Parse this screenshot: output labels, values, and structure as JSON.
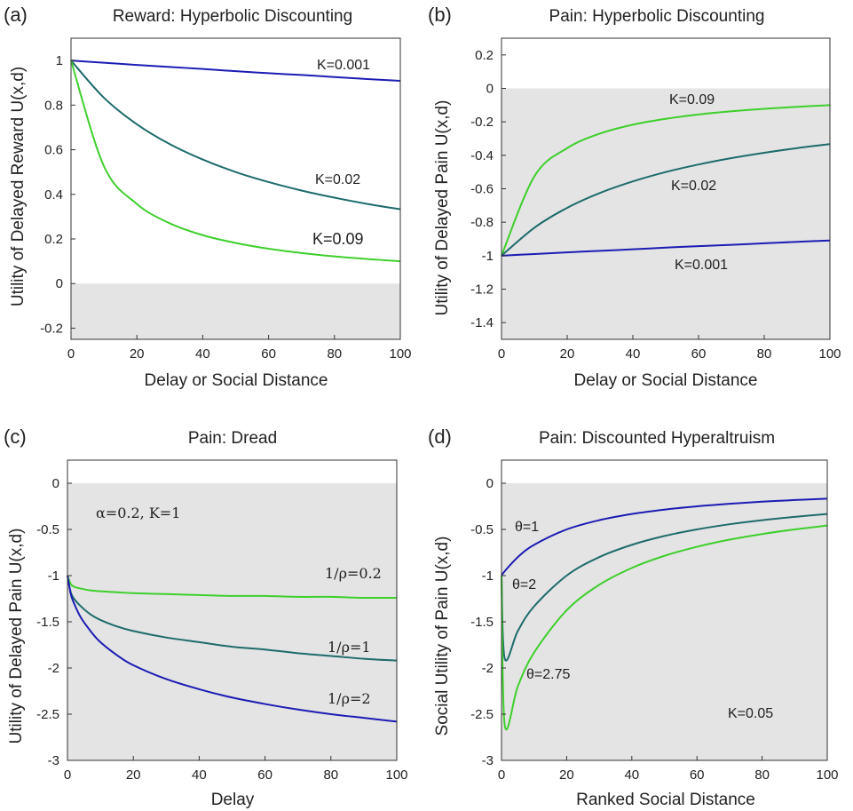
{
  "chart_data": [
    {
      "type": "line",
      "panel": "(a)",
      "title": "Reward: Hyperbolic Discounting",
      "xlabel": "Delay or Social Distance",
      "ylabel": "Utility of Delayed Reward U(x,d)",
      "xlim": [
        0,
        100
      ],
      "ylim": [
        -0.25,
        1.1
      ],
      "xticks": [
        "0",
        "20",
        "40",
        "60",
        "80",
        "100"
      ],
      "yticks": [
        "-0.2",
        "0",
        "0.2",
        "0.4",
        "0.6",
        "0.8",
        "1"
      ],
      "shaded_region": [
        -0.25,
        0
      ],
      "x": [
        0,
        10,
        20,
        30,
        40,
        50,
        60,
        70,
        80,
        90,
        100
      ],
      "series": [
        {
          "name": "K=0.001",
          "color": "#1c1cb4",
          "values": [
            1.0,
            0.99,
            0.98,
            0.971,
            0.962,
            0.952,
            0.943,
            0.935,
            0.926,
            0.917,
            0.909
          ]
        },
        {
          "name": "K=0.02",
          "color": "#1e6b6b",
          "values": [
            1.0,
            0.833,
            0.714,
            0.625,
            0.556,
            0.5,
            0.455,
            0.417,
            0.385,
            0.357,
            0.333
          ]
        },
        {
          "name": "K=0.09",
          "color": "#3ecf2c",
          "values": [
            1.0,
            0.526,
            0.357,
            0.27,
            0.217,
            0.182,
            0.156,
            0.137,
            0.122,
            0.11,
            0.1
          ]
        }
      ],
      "annotations": [
        "K=0.001",
        "K=0.02",
        "K=0.09"
      ]
    },
    {
      "type": "line",
      "panel": "(b)",
      "title": "Pain: Hyperbolic Discounting",
      "xlabel": "Delay or Social Distance",
      "ylabel": "Utility of Delayed Pain U(x,d)",
      "xlim": [
        0,
        100
      ],
      "ylim": [
        -1.5,
        0.3
      ],
      "xticks": [
        "0",
        "20",
        "40",
        "60",
        "80",
        "100"
      ],
      "yticks": [
        "-1.4",
        "-1.2",
        "-1",
        "-0.8",
        "-0.6",
        "-0.4",
        "-0.2",
        "0",
        "0.2"
      ],
      "shaded_region": [
        -1.5,
        0
      ],
      "x": [
        0,
        10,
        20,
        30,
        40,
        50,
        60,
        70,
        80,
        90,
        100
      ],
      "series": [
        {
          "name": "K=0.09",
          "color": "#3ecf2c",
          "values": [
            -1.0,
            -0.526,
            -0.357,
            -0.27,
            -0.217,
            -0.182,
            -0.156,
            -0.137,
            -0.122,
            -0.11,
            -0.1
          ]
        },
        {
          "name": "K=0.02",
          "color": "#1e6b6b",
          "values": [
            -1.0,
            -0.833,
            -0.714,
            -0.625,
            -0.556,
            -0.5,
            -0.455,
            -0.417,
            -0.385,
            -0.357,
            -0.333
          ]
        },
        {
          "name": "K=0.001",
          "color": "#1c1cb4",
          "values": [
            -1.0,
            -0.99,
            -0.98,
            -0.971,
            -0.962,
            -0.952,
            -0.943,
            -0.935,
            -0.926,
            -0.917,
            -0.909
          ]
        }
      ],
      "annotations": [
        "K=0.09",
        "K=0.02",
        "K=0.001"
      ]
    },
    {
      "type": "line",
      "panel": "(c)",
      "title": "Pain: Dread",
      "xlabel": "Delay",
      "ylabel": "Utility of Delayed Pain U(x,d)",
      "xlim": [
        0,
        100
      ],
      "ylim": [
        -3,
        0.25
      ],
      "xticks": [
        "0",
        "20",
        "40",
        "60",
        "80",
        "100"
      ],
      "yticks": [
        "-3",
        "-2.5",
        "-2",
        "-1.5",
        "-1",
        "-0.5",
        "0"
      ],
      "shaded_region": [
        -3,
        0
      ],
      "x": [
        0,
        1,
        2,
        4,
        7,
        10,
        15,
        20,
        30,
        40,
        50,
        60,
        70,
        80,
        90,
        100
      ],
      "series": [
        {
          "name": "1/ρ=0.2",
          "color": "#3ecf2c",
          "values": [
            -1.0,
            -1.09,
            -1.12,
            -1.14,
            -1.16,
            -1.17,
            -1.18,
            -1.19,
            -1.2,
            -1.21,
            -1.22,
            -1.22,
            -1.23,
            -1.23,
            -1.24,
            -1.24
          ]
        },
        {
          "name": "1/ρ=1",
          "color": "#1e6b6b",
          "values": [
            -1.0,
            -1.18,
            -1.25,
            -1.33,
            -1.42,
            -1.48,
            -1.55,
            -1.6,
            -1.67,
            -1.72,
            -1.77,
            -1.8,
            -1.84,
            -1.87,
            -1.9,
            -1.92
          ]
        },
        {
          "name": "1/ρ=2",
          "color": "#1c1cb4",
          "values": [
            -1.0,
            -1.2,
            -1.3,
            -1.45,
            -1.6,
            -1.72,
            -1.86,
            -1.97,
            -2.12,
            -2.23,
            -2.32,
            -2.39,
            -2.45,
            -2.5,
            -2.54,
            -2.58
          ]
        }
      ],
      "annotations": [
        "α=0.2, K=1",
        "1/ρ=0.2",
        "1/ρ=1",
        "1/ρ=2"
      ]
    },
    {
      "type": "line",
      "panel": "(d)",
      "title": "Pain: Discounted Hyperaltruism",
      "xlabel": "Ranked Social Distance",
      "ylabel": "Social Utility of Pain U(x,d)",
      "xlim": [
        0,
        100
      ],
      "ylim": [
        -3,
        0.25
      ],
      "xticks": [
        "0",
        "20",
        "40",
        "60",
        "80",
        "100"
      ],
      "yticks": [
        "-3",
        "-2.5",
        "-2",
        "-1.5",
        "-1",
        "-0.5",
        "0"
      ],
      "shaded_region": [
        -3,
        0
      ],
      "x": [
        0,
        1,
        5,
        10,
        20,
        30,
        40,
        50,
        60,
        70,
        80,
        90,
        100
      ],
      "series": [
        {
          "name": "θ=1",
          "color": "#1c1cb4",
          "values": [
            -1.0,
            -0.952,
            -0.8,
            -0.667,
            -0.5,
            -0.4,
            -0.333,
            -0.286,
            -0.25,
            -0.222,
            -0.2,
            -0.182,
            -0.167
          ]
        },
        {
          "name": "θ=2",
          "color": "#1e6b6b",
          "values": [
            -1.0,
            -1.9,
            -1.6,
            -1.333,
            -1.0,
            -0.8,
            -0.667,
            -0.571,
            -0.5,
            -0.444,
            -0.4,
            -0.364,
            -0.333
          ]
        },
        {
          "name": "θ=2.75",
          "color": "#3ecf2c",
          "values": [
            -1.0,
            -2.62,
            -2.2,
            -1.833,
            -1.375,
            -1.1,
            -0.917,
            -0.786,
            -0.688,
            -0.611,
            -0.55,
            -0.5,
            -0.458
          ]
        }
      ],
      "annotations": [
        "θ=1",
        "θ=2",
        "θ=2.75",
        "K=0.05"
      ]
    }
  ]
}
